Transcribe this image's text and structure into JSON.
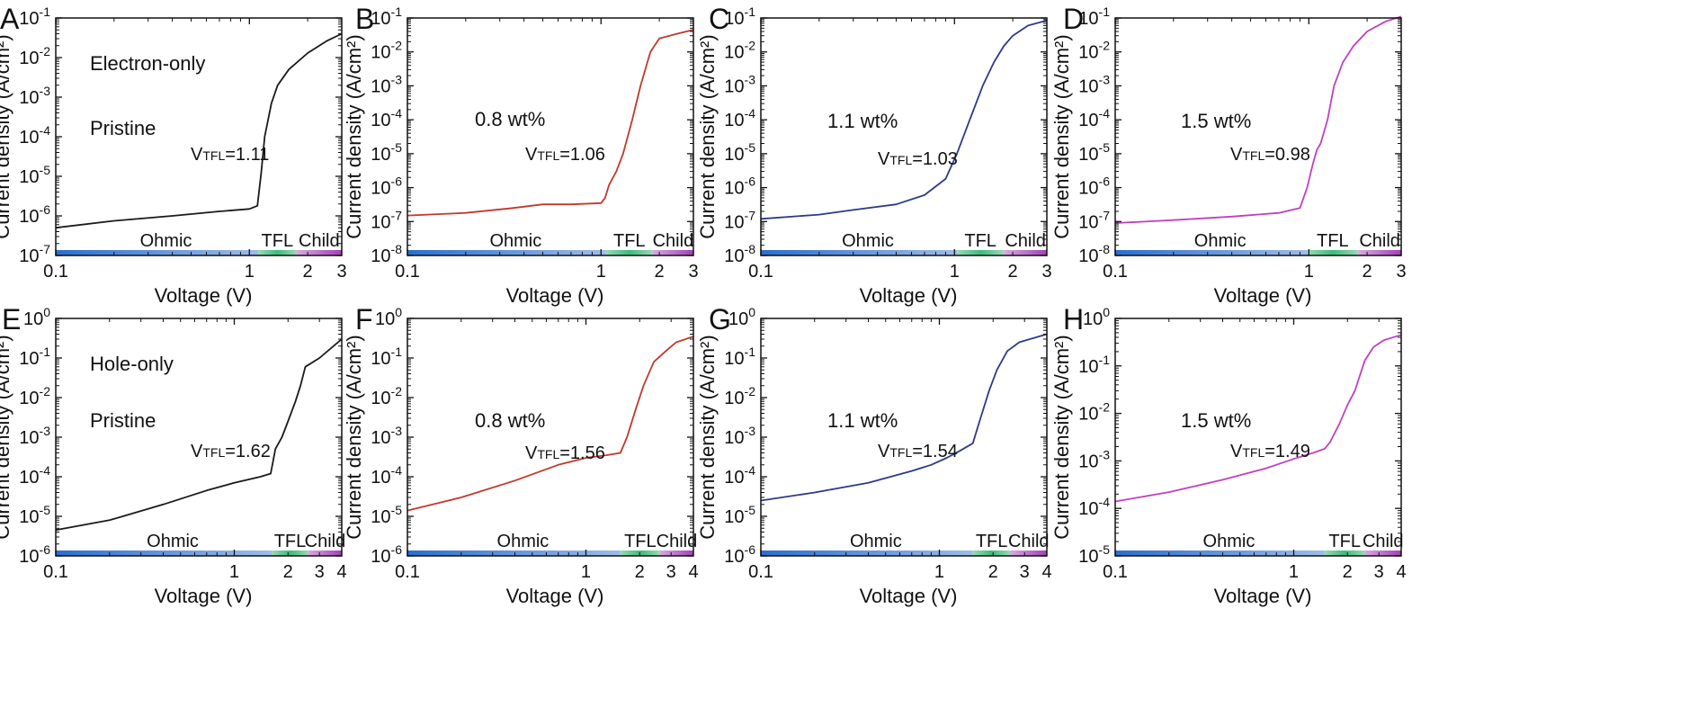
{
  "chart_data": [
    {
      "panel": "A",
      "type": "line",
      "ylabel": "Current density (A/cm²)",
      "xlabel": "Voltage (V)",
      "xlim": [
        0.1,
        3
      ],
      "ylim_exp": [
        -7,
        -1
      ],
      "xscale": "log",
      "yscale": "log",
      "xticks": [
        "0.1",
        "1",
        "2",
        "3"
      ],
      "yticks_exp": [
        "-7",
        "-6",
        "-5",
        "-4",
        "-3",
        "-2",
        "-1"
      ],
      "annotations": [
        "Electron-only",
        "Pristine"
      ],
      "vtfl": "1.11",
      "color": "#1a1a1a",
      "bands": [
        {
          "label": "Ohmic",
          "from": 0.1,
          "to": 1.11
        },
        {
          "label": "TFL",
          "from": 1.11,
          "to": 1.75
        },
        {
          "label": "Child",
          "from": 1.75,
          "to": 3
        }
      ],
      "x": [
        0.1,
        0.2,
        0.4,
        0.7,
        1.0,
        1.1,
        1.15,
        1.2,
        1.3,
        1.4,
        1.6,
        2.0,
        2.5,
        3.0
      ],
      "y": [
        5e-07,
        7.5e-07,
        1e-06,
        1.3e-06,
        1.5e-06,
        1.8e-06,
        1.2e-05,
        0.0001,
        0.0007,
        0.002,
        0.005,
        0.013,
        0.026,
        0.04
      ]
    },
    {
      "panel": "B",
      "type": "line",
      "ylabel": "Current density (A/cm²)",
      "xlabel": "Voltage (V)",
      "xlim": [
        0.1,
        3
      ],
      "ylim_exp": [
        -8,
        -1
      ],
      "xscale": "log",
      "yscale": "log",
      "xticks": [
        "0.1",
        "1",
        "2",
        "3"
      ],
      "yticks_exp": [
        "-8",
        "-7",
        "-6",
        "-5",
        "-4",
        "-3",
        "-2",
        "-1"
      ],
      "annotations": [
        "0.8 wt%"
      ],
      "vtfl": "1.06",
      "color": "#c0392b",
      "bands": [
        {
          "label": "Ohmic",
          "from": 0.1,
          "to": 1.06
        },
        {
          "label": "TFL",
          "from": 1.06,
          "to": 1.85
        },
        {
          "label": "Child",
          "from": 1.85,
          "to": 3
        }
      ],
      "x": [
        0.1,
        0.2,
        0.35,
        0.5,
        0.7,
        1.0,
        1.05,
        1.1,
        1.2,
        1.3,
        1.45,
        1.6,
        1.8,
        2.0,
        2.5,
        3.0
      ],
      "y": [
        1.5e-07,
        1.8e-07,
        2.5e-07,
        3.2e-07,
        3.2e-07,
        3.5e-07,
        5e-07,
        1.2e-06,
        3e-06,
        1e-05,
        0.0001,
        0.001,
        0.01,
        0.025,
        0.035,
        0.045
      ]
    },
    {
      "panel": "C",
      "type": "line",
      "ylabel": "Current density (A/cm²)",
      "xlabel": "Voltage (V)",
      "xlim": [
        0.1,
        3
      ],
      "ylim_exp": [
        -8,
        -1
      ],
      "xscale": "log",
      "yscale": "log",
      "xticks": [
        "0.1",
        "1",
        "2",
        "3"
      ],
      "yticks_exp": [
        "-8",
        "-7",
        "-6",
        "-5",
        "-4",
        "-3",
        "-2",
        "-1"
      ],
      "annotations": [
        "1.1 wt%"
      ],
      "vtfl": "1.03",
      "color": "#2e3a87",
      "bands": [
        {
          "label": "Ohmic",
          "from": 0.1,
          "to": 1.03
        },
        {
          "label": "TFL",
          "from": 1.03,
          "to": 1.8
        },
        {
          "label": "Child",
          "from": 1.8,
          "to": 3
        }
      ],
      "x": [
        0.1,
        0.2,
        0.3,
        0.5,
        0.7,
        0.9,
        1.03,
        1.2,
        1.4,
        1.6,
        1.8,
        2.0,
        2.4,
        3.0
      ],
      "y": [
        1.2e-07,
        1.6e-07,
        2.2e-07,
        3.2e-07,
        6e-07,
        1.8e-06,
        1e-05,
        0.0001,
        0.001,
        0.005,
        0.015,
        0.03,
        0.06,
        0.085
      ]
    },
    {
      "panel": "D",
      "type": "line",
      "ylabel": "Current density (A/cm²)",
      "xlabel": "Voltage (V)",
      "xlim": [
        0.1,
        3
      ],
      "ylim_exp": [
        -8,
        -1
      ],
      "xscale": "log",
      "yscale": "log",
      "xticks": [
        "0.1",
        "1",
        "2",
        "3"
      ],
      "yticks_exp": [
        "-8",
        "-7",
        "-6",
        "-5",
        "-4",
        "-3",
        "-2",
        "-1"
      ],
      "annotations": [
        "1.5 wt%"
      ],
      "vtfl": "0.98",
      "color": "#c040c0",
      "bands": [
        {
          "label": "Ohmic",
          "from": 0.1,
          "to": 0.98
        },
        {
          "label": "TFL",
          "from": 0.98,
          "to": 1.8
        },
        {
          "label": "Child",
          "from": 1.8,
          "to": 3
        }
      ],
      "x": [
        0.1,
        0.2,
        0.4,
        0.7,
        0.9,
        0.98,
        1.05,
        1.1,
        1.15,
        1.25,
        1.35,
        1.5,
        1.7,
        2.0,
        2.5,
        3.0
      ],
      "y": [
        9e-08,
        1.1e-07,
        1.4e-07,
        1.8e-07,
        2.5e-07,
        1e-06,
        5e-06,
        1.3e-05,
        2e-05,
        0.0001,
        0.001,
        0.005,
        0.015,
        0.04,
        0.08,
        0.11
      ]
    },
    {
      "panel": "E",
      "type": "line",
      "ylabel": "Current density (A/cm²)",
      "xlabel": "Voltage (V)",
      "xlim": [
        0.1,
        4
      ],
      "ylim_exp": [
        -6,
        0
      ],
      "xscale": "log",
      "yscale": "log",
      "xticks": [
        "0.1",
        "1",
        "2",
        "3",
        "4"
      ],
      "yticks_exp": [
        "-6",
        "-5",
        "-4",
        "-3",
        "-2",
        "-1",
        "0"
      ],
      "annotations": [
        "Hole-only",
        "Pristine"
      ],
      "vtfl": "1.62",
      "color": "#1a1a1a",
      "bands": [
        {
          "label": "Ohmic",
          "from": 0.1,
          "to": 1.62
        },
        {
          "label": "TFL",
          "from": 1.62,
          "to": 2.6
        },
        {
          "label": "Child",
          "from": 2.6,
          "to": 4
        }
      ],
      "x": [
        0.1,
        0.2,
        0.4,
        0.7,
        1.0,
        1.4,
        1.6,
        1.7,
        1.85,
        2.0,
        2.2,
        2.35,
        2.5,
        3.0,
        4.0
      ],
      "y": [
        4.5e-06,
        8e-06,
        2e-05,
        4.5e-05,
        7e-05,
        0.0001,
        0.00012,
        0.0005,
        0.001,
        0.0025,
        0.008,
        0.02,
        0.06,
        0.1,
        0.3
      ]
    },
    {
      "panel": "F",
      "type": "line",
      "ylabel": "Current density (A/cm²)",
      "xlabel": "Voltage (V)",
      "xlim": [
        0.1,
        4
      ],
      "ylim_exp": [
        -6,
        0
      ],
      "xscale": "log",
      "yscale": "log",
      "xticks": [
        "0.1",
        "1",
        "2",
        "3",
        "4"
      ],
      "yticks_exp": [
        "-6",
        "-5",
        "-4",
        "-3",
        "-2",
        "-1",
        "0"
      ],
      "annotations": [
        "0.8 wt%"
      ],
      "vtfl": "1.56",
      "color": "#c0392b",
      "bands": [
        {
          "label": "Ohmic",
          "from": 0.1,
          "to": 1.56
        },
        {
          "label": "TFL",
          "from": 1.56,
          "to": 2.6
        },
        {
          "label": "Child",
          "from": 2.6,
          "to": 4
        }
      ],
      "x": [
        0.1,
        0.2,
        0.4,
        0.7,
        1.0,
        1.3,
        1.56,
        1.7,
        1.9,
        2.1,
        2.4,
        2.8,
        3.2,
        4.0
      ],
      "y": [
        1.4e-05,
        3e-05,
        8e-05,
        0.0002,
        0.0003,
        0.00035,
        0.0004,
        0.001,
        0.005,
        0.02,
        0.08,
        0.15,
        0.25,
        0.35
      ]
    },
    {
      "panel": "G",
      "type": "line",
      "ylabel": "Current density (A/cm²)",
      "xlabel": "Voltage (V)",
      "xlim": [
        0.1,
        4
      ],
      "ylim_exp": [
        -6,
        0
      ],
      "xscale": "log",
      "yscale": "log",
      "xticks": [
        "0.1",
        "1",
        "2",
        "3",
        "4"
      ],
      "yticks_exp": [
        "-6",
        "-5",
        "-4",
        "-3",
        "-2",
        "-1",
        "0"
      ],
      "annotations": [
        "1.1 wt%"
      ],
      "vtfl": "1.54",
      "color": "#2e3a87",
      "bands": [
        {
          "label": "Ohmic",
          "from": 0.1,
          "to": 1.54
        },
        {
          "label": "TFL",
          "from": 1.54,
          "to": 2.5
        },
        {
          "label": "Child",
          "from": 2.5,
          "to": 4
        }
      ],
      "x": [
        0.1,
        0.2,
        0.4,
        0.7,
        0.9,
        1.1,
        1.3,
        1.54,
        1.7,
        1.9,
        2.1,
        2.4,
        2.8,
        4.0
      ],
      "y": [
        2.5e-05,
        4e-05,
        7e-05,
        0.00014,
        0.0002,
        0.0003,
        0.00045,
        0.0007,
        0.003,
        0.015,
        0.05,
        0.15,
        0.25,
        0.4
      ]
    },
    {
      "panel": "H",
      "type": "line",
      "ylabel": "Current density (A/cm²)",
      "xlabel": "Voltage (V)",
      "xlim": [
        0.1,
        4
      ],
      "ylim_exp": [
        -5,
        0
      ],
      "xscale": "log",
      "yscale": "log",
      "xticks": [
        "0.1",
        "1",
        "2",
        "3",
        "4"
      ],
      "yticks_exp": [
        "-5",
        "-4",
        "-3",
        "-2",
        "-1",
        "0"
      ],
      "annotations": [
        "1.5 wt%"
      ],
      "vtfl": "1.49",
      "color": "#c040c0",
      "bands": [
        {
          "label": "Ohmic",
          "from": 0.1,
          "to": 1.49
        },
        {
          "label": "TFL",
          "from": 1.49,
          "to": 2.5
        },
        {
          "label": "Child",
          "from": 2.5,
          "to": 4
        }
      ],
      "x": [
        0.1,
        0.2,
        0.4,
        0.7,
        1.0,
        1.3,
        1.49,
        1.6,
        1.8,
        2.0,
        2.2,
        2.5,
        2.8,
        3.2,
        4.0
      ],
      "y": [
        0.00014,
        0.00022,
        0.0004,
        0.0007,
        0.0011,
        0.0015,
        0.0018,
        0.0025,
        0.006,
        0.015,
        0.03,
        0.13,
        0.25,
        0.35,
        0.45
      ]
    }
  ],
  "colors": {
    "ohmic": "#2a6ed1",
    "tfl": "#3dbb78",
    "child": "#a23fb5"
  }
}
